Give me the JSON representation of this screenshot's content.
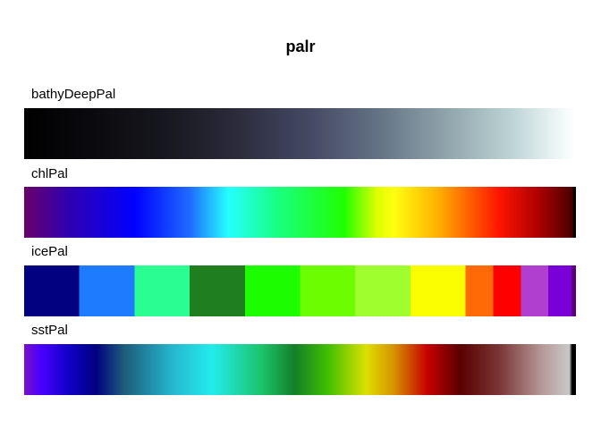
{
  "title": "palr",
  "palettes": [
    {
      "label": "bathyDeepPal"
    },
    {
      "label": "chlPal"
    },
    {
      "label": "icePal"
    },
    {
      "label": "sstPal"
    }
  ]
}
